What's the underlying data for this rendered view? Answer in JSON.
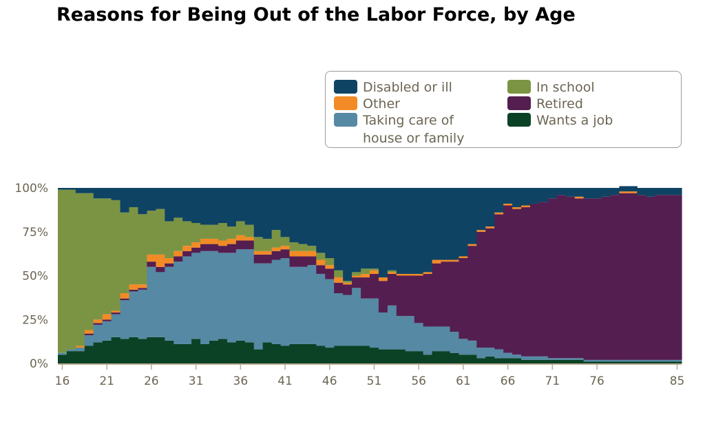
{
  "chart_data": {
    "type": "area",
    "stacked": true,
    "title": "Reasons for Being Out of the Labor Force, by Age",
    "x": [
      16,
      17,
      18,
      19,
      20,
      21,
      22,
      23,
      24,
      25,
      26,
      27,
      28,
      29,
      30,
      31,
      32,
      33,
      34,
      35,
      36,
      37,
      38,
      39,
      40,
      41,
      42,
      43,
      44,
      45,
      46,
      47,
      48,
      49,
      50,
      51,
      52,
      53,
      54,
      55,
      56,
      57,
      58,
      59,
      60,
      61,
      62,
      63,
      64,
      65,
      66,
      67,
      68,
      69,
      70,
      71,
      72,
      73,
      74,
      75,
      76,
      77,
      78,
      79,
      80,
      81,
      82,
      83,
      84,
      85
    ],
    "x_ticks": [
      "16",
      "21",
      "26",
      "31",
      "36",
      "41",
      "46",
      "51",
      "56",
      "61",
      "66",
      "71",
      "76",
      "85"
    ],
    "y_ticks": [
      "0%",
      "25%",
      "50%",
      "75%",
      "100%"
    ],
    "ylim": [
      0,
      100
    ],
    "legend_position": "top-right",
    "series": [
      {
        "name": "Wants a job",
        "color": "#0b4226",
        "values": [
          5,
          7,
          7,
          10,
          12,
          13,
          15,
          14,
          15,
          14,
          15,
          15,
          13,
          11,
          11,
          14,
          11,
          13,
          14,
          12,
          13,
          12,
          8,
          12,
          11,
          10,
          11,
          11,
          11,
          10,
          9,
          10,
          10,
          10,
          10,
          9,
          8,
          8,
          8,
          7,
          7,
          5,
          7,
          7,
          6,
          5,
          5,
          3,
          4,
          3,
          3,
          3,
          2,
          2,
          2,
          2,
          2,
          2,
          2,
          1,
          1,
          1,
          1,
          1,
          1,
          1,
          1,
          1,
          1,
          1
        ]
      },
      {
        "name": "Taking care of house or family",
        "color": "#5589a4",
        "values": [
          1,
          1,
          2,
          6,
          10,
          11,
          13,
          22,
          26,
          28,
          40,
          37,
          42,
          47,
          50,
          49,
          53,
          51,
          49,
          51,
          52,
          53,
          49,
          45,
          48,
          50,
          44,
          44,
          45,
          41,
          39,
          30,
          29,
          33,
          27,
          28,
          21,
          25,
          19,
          20,
          16,
          16,
          14,
          14,
          12,
          9,
          8,
          6,
          5,
          5,
          3,
          2,
          2,
          2,
          2,
          1,
          1,
          1,
          1,
          1,
          1,
          1,
          1,
          1,
          1,
          1,
          1,
          1,
          1,
          1
        ]
      },
      {
        "name": "Retired",
        "color": "#541e50",
        "values": [
          0,
          0,
          0,
          1,
          1,
          1,
          1,
          1,
          1,
          1,
          3,
          3,
          2,
          3,
          3,
          3,
          4,
          4,
          4,
          5,
          5,
          5,
          5,
          5,
          5,
          5,
          6,
          6,
          5,
          5,
          6,
          6,
          6,
          6,
          12,
          14,
          18,
          18,
          23,
          23,
          27,
          30,
          36,
          37,
          40,
          46,
          54,
          66,
          68,
          77,
          84,
          83,
          85,
          87,
          88,
          91,
          93,
          92,
          91,
          92,
          92,
          93,
          94,
          95,
          95,
          94,
          93,
          94,
          94,
          94
        ]
      },
      {
        "name": "Other",
        "color": "#f28b26",
        "values": [
          0,
          0,
          1,
          2,
          2,
          3,
          1,
          3,
          3,
          2,
          4,
          7,
          3,
          3,
          3,
          3,
          3,
          3,
          3,
          3,
          3,
          2,
          2,
          2,
          2,
          2,
          3,
          3,
          3,
          3,
          2,
          3,
          1,
          1,
          2,
          2,
          2,
          1,
          1,
          1,
          1,
          1,
          2,
          1,
          1,
          1,
          1,
          1,
          1,
          1,
          1,
          1,
          1,
          0,
          0,
          0,
          0,
          0,
          1,
          0,
          0,
          0,
          0,
          1,
          1,
          0,
          0,
          0,
          0,
          0
        ]
      },
      {
        "name": "In school",
        "color": "#7b9444",
        "values": [
          93,
          91,
          87,
          78,
          69,
          66,
          63,
          46,
          44,
          40,
          25,
          26,
          21,
          19,
          14,
          11,
          8,
          8,
          10,
          7,
          8,
          7,
          8,
          7,
          10,
          5,
          5,
          4,
          3,
          4,
          4,
          4,
          1,
          2,
          3,
          1,
          0,
          1,
          0,
          0,
          0,
          0,
          0,
          0,
          0,
          0,
          0,
          0,
          0,
          0,
          0,
          0,
          0,
          0,
          0,
          0,
          0,
          0,
          0,
          0,
          0,
          0,
          0,
          0,
          0,
          0,
          0,
          0,
          0,
          0
        ]
      },
      {
        "name": "Disabled or ill",
        "color": "#0e4364",
        "values": [
          1,
          1,
          3,
          3,
          6,
          6,
          7,
          14,
          11,
          15,
          13,
          12,
          19,
          17,
          19,
          20,
          21,
          21,
          20,
          22,
          19,
          21,
          28,
          29,
          24,
          28,
          31,
          32,
          33,
          37,
          40,
          47,
          53,
          48,
          46,
          46,
          51,
          47,
          49,
          49,
          49,
          48,
          41,
          41,
          41,
          39,
          32,
          24,
          22,
          14,
          9,
          11,
          10,
          9,
          8,
          6,
          4,
          5,
          5,
          6,
          6,
          5,
          4,
          3,
          3,
          4,
          5,
          4,
          4,
          4
        ]
      }
    ]
  },
  "legend": {
    "items": [
      {
        "label": "Disabled or ill",
        "color": "#0e4364"
      },
      {
        "label": "In school",
        "color": "#7b9444"
      },
      {
        "label": "Other",
        "color": "#f28b26"
      },
      {
        "label": "Retired",
        "color": "#541e50"
      },
      {
        "label": "Taking care of house or family",
        "color": "#5589a4"
      },
      {
        "label": "Wants a job",
        "color": "#0b4226"
      }
    ]
  }
}
